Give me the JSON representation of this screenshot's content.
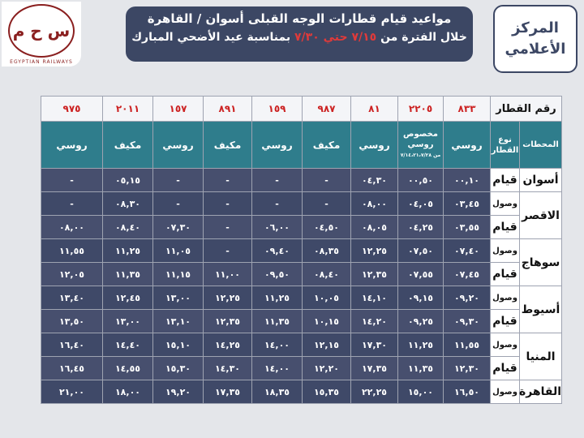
{
  "logo": {
    "symbol": "س ح م",
    "name": "EGYPTIAN RAILWAYS"
  },
  "header": {
    "line1": "مواعيد قيام قطارات الوجه القبلى  أسوان / القاهرة",
    "line2_a": "خلال الفترة من",
    "line2_red": "٧/١٥ حتي ٧/٣٠",
    "line2_b": "بمناسبة عيد الأضحي المبارك"
  },
  "center": {
    "line1": "المركز",
    "line2": "الأعلامي"
  },
  "table": {
    "train_label": "رقم القطار",
    "stations_label": "المحطات",
    "type_label": "نوع القطار",
    "trains": [
      "٨٣٣",
      "٢٢٠٥",
      "٨١",
      "٩٨٧",
      "١٥٩",
      "٨٩١",
      "١٥٧",
      "٢٠١١",
      "٩٧٥"
    ],
    "types": [
      "روسي",
      "مخصوص روسي",
      "روسي",
      "مكيف",
      "روسي",
      "مكيف",
      "روسي",
      "مكيف",
      "روسي"
    ],
    "special_note": "من ٧/١٤،٢١،٧/٢٨",
    "rows": [
      {
        "station": "أسوان",
        "event": "قيام",
        "times": [
          "٠٠,١٠",
          "٠٠,٥٠",
          "٠٤,٣٠",
          "-",
          "-",
          "-",
          "-",
          "٠٥,١٥",
          "-"
        ]
      },
      {
        "station": "الاقصر",
        "event": "وصول",
        "times": [
          "٠٣,٤٥",
          "٠٤,٠٥",
          "٠٨,٠٠",
          "-",
          "-",
          "-",
          "-",
          "٠٨,٣٠",
          "-"
        ]
      },
      {
        "station": "",
        "event": "قيام",
        "times": [
          "٠٣,٥٥",
          "٠٤,٢٥",
          "٠٨,٠٥",
          "٠٤,٥٠",
          "٠٦,٠٠",
          "-",
          "٠٧,٣٠",
          "٠٨,٤٠",
          "٠٨,٠٠"
        ]
      },
      {
        "station": "سوهاج",
        "event": "وصول",
        "times": [
          "٠٧,٤٠",
          "٠٧,٥٠",
          "١٢,٢٥",
          "٠٨,٣٥",
          "٠٩,٤٠",
          "-",
          "١١,٠٥",
          "١١,٢٥",
          "١١,٥٥"
        ]
      },
      {
        "station": "",
        "event": "قيام",
        "times": [
          "٠٧,٤٥",
          "٠٧,٥٥",
          "١٢,٣٥",
          "٠٨,٤٠",
          "٠٩,٥٠",
          "١١,٠٠",
          "١١,١٥",
          "١١,٣٥",
          "١٢,٠٥"
        ]
      },
      {
        "station": "أسيوط",
        "event": "وصول",
        "times": [
          "٠٩,٢٠",
          "٠٩,١٥",
          "١٤,١٠",
          "١٠,٠٥",
          "١١,٢٥",
          "١٢,٢٥",
          "١٣,٠٠",
          "١٢,٤٥",
          "١٣,٤٠"
        ]
      },
      {
        "station": "",
        "event": "قيام",
        "times": [
          "٠٩,٣٠",
          "٠٩,٢٥",
          "١٤,٢٠",
          "١٠,١٥",
          "١١,٣٥",
          "١٢,٣٥",
          "١٣,١٠",
          "١٣,٠٠",
          "١٣,٥٠"
        ]
      },
      {
        "station": "المنيا",
        "event": "وصول",
        "times": [
          "١١,٥٥",
          "١١,٢٥",
          "١٧,٣٠",
          "١٢,١٥",
          "١٤,٠٠",
          "١٤,٢٥",
          "١٥,١٠",
          "١٤,٤٠",
          "١٦,٤٠"
        ]
      },
      {
        "station": "",
        "event": "قيام",
        "times": [
          "١٢,٣٠",
          "١١,٣٥",
          "١٧,٣٥",
          "١٢,٢٠",
          "١٤,٠٠",
          "١٤,٣٠",
          "١٥,٣٠",
          "١٤,٥٥",
          "١٦,٤٥"
        ]
      },
      {
        "station": "القاهرة",
        "event": "وصول",
        "times": [
          "١٦,٥٠",
          "١٥,٠٠",
          "٢٢,٢٥",
          "١٥,٣٥",
          "١٨,٣٥",
          "١٧,٣٥",
          "١٩,٢٠",
          "١٨,٠٠",
          "٢١,٠٠"
        ]
      }
    ]
  }
}
